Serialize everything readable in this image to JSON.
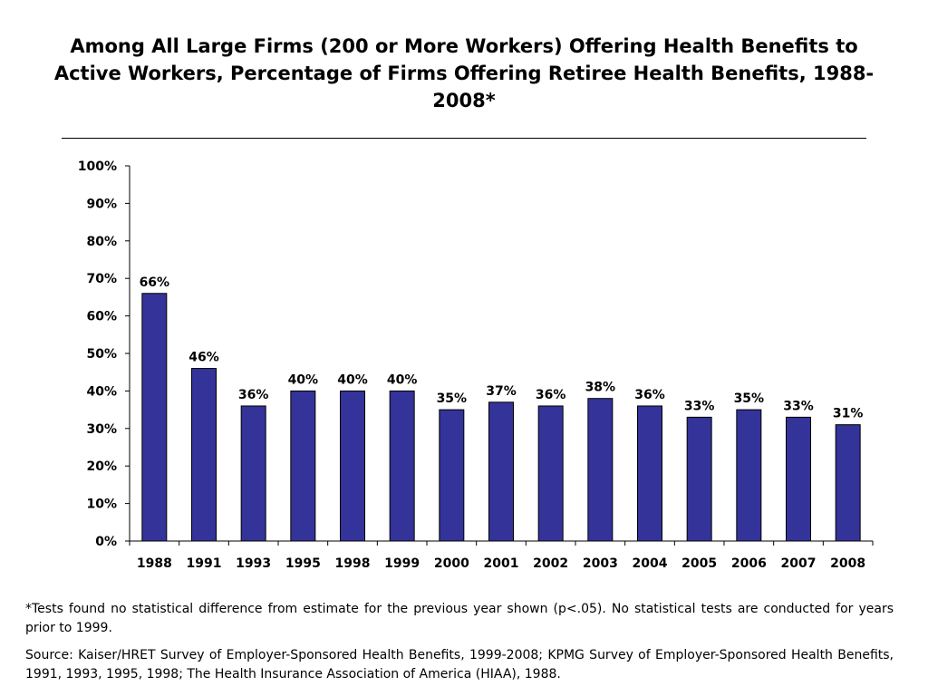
{
  "title": "Among All Large Firms (200 or More Workers) Offering Health Benefits to Active Workers, Percentage of Firms Offering Retiree Health Benefits, 1988-2008*",
  "footnote": "*Tests found no statistical difference from estimate for the previous year shown (p<.05).  No statistical tests are conducted for years prior to 1999.",
  "source": "Source: Kaiser/HRET Survey of Employer-Sponsored Health Benefits, 1999-2008; KPMG Survey of Employer-Sponsored Health Benefits, 1991, 1993, 1995, 1998; The Health Insurance Association of America (HIAA), 1988.",
  "colors": {
    "bar": "#333399",
    "bar_outline": "#000000"
  },
  "chart_data": {
    "type": "bar",
    "categories": [
      "1988",
      "1991",
      "1993",
      "1995",
      "1998",
      "1999",
      "2000",
      "2001",
      "2002",
      "2003",
      "2004",
      "2005",
      "2006",
      "2007",
      "2008"
    ],
    "values": [
      66,
      46,
      36,
      40,
      40,
      40,
      35,
      37,
      36,
      38,
      36,
      33,
      35,
      33,
      31
    ],
    "data_labels": [
      "66%",
      "46%",
      "36%",
      "40%",
      "40%",
      "40%",
      "35%",
      "37%",
      "36%",
      "38%",
      "36%",
      "33%",
      "35%",
      "33%",
      "31%"
    ],
    "y_ticks": [
      "0%",
      "10%",
      "20%",
      "30%",
      "40%",
      "50%",
      "60%",
      "70%",
      "80%",
      "90%",
      "100%"
    ],
    "ylim": [
      0,
      100
    ],
    "xlabel": "",
    "ylabel": "",
    "grid": false
  }
}
